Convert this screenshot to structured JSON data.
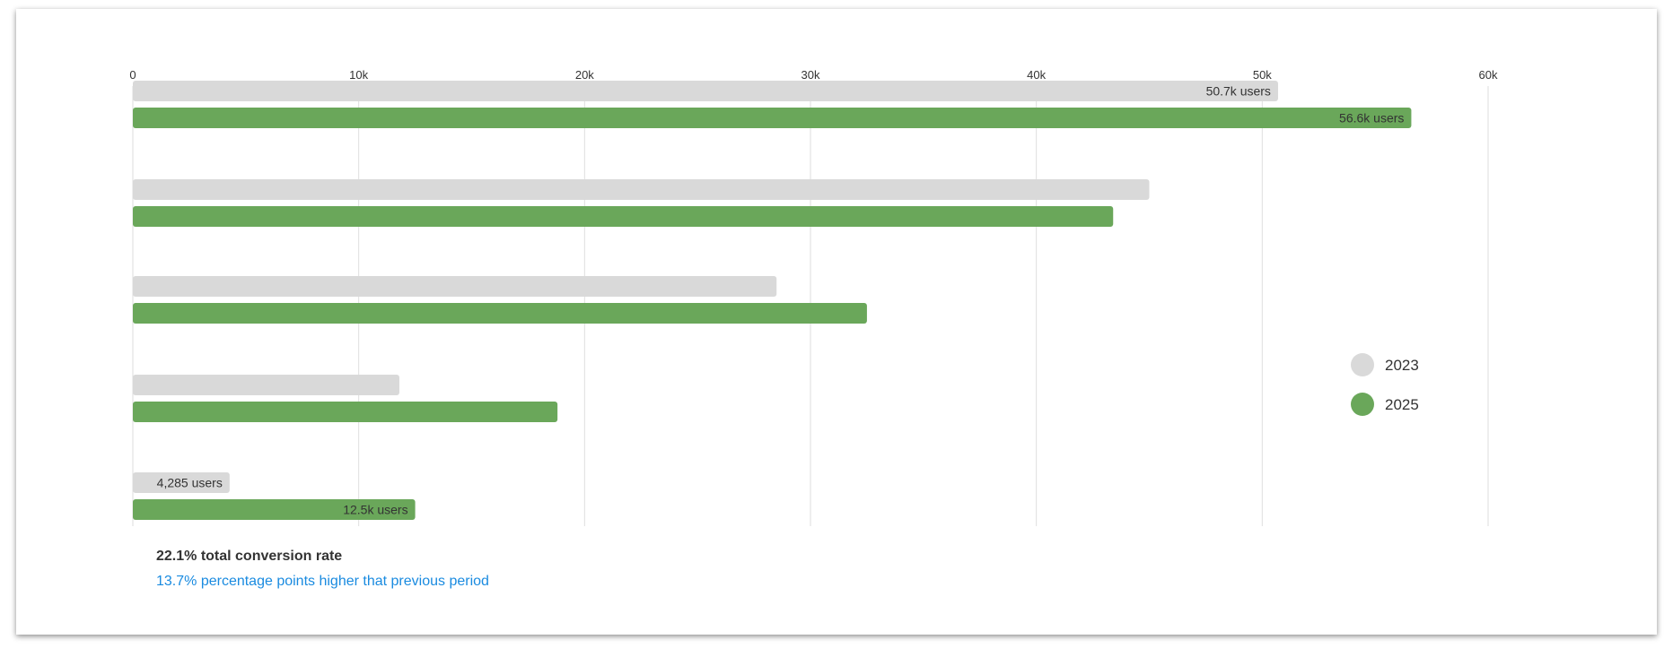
{
  "chart_data": {
    "type": "bar",
    "orientation": "horizontal",
    "xlim": [
      0,
      60000
    ],
    "x_ticks": [
      0,
      10000,
      20000,
      30000,
      40000,
      50000,
      60000
    ],
    "x_tick_labels": [
      "0",
      "10k",
      "20k",
      "30k",
      "40k",
      "50k",
      "60k"
    ],
    "grid": true,
    "legend_position": "right",
    "categories": [
      "",
      "",
      "",
      "",
      ""
    ],
    "series": [
      {
        "name": "2023",
        "color": "#d9d9d9",
        "values": [
          50700,
          45000,
          28500,
          11800,
          4285
        ],
        "data_labels": [
          "50.7k users",
          "",
          "",
          "",
          "4,285 users"
        ]
      },
      {
        "name": "2025",
        "color": "#6aa75a",
        "values": [
          56600,
          43400,
          32500,
          18800,
          12500
        ],
        "data_labels": [
          "56.6k users",
          "",
          "",
          "",
          "12.5k users"
        ]
      }
    ]
  },
  "summary": {
    "headline": "22.1% total conversion rate",
    "subline": "13.7% percentage points higher that previous period"
  }
}
